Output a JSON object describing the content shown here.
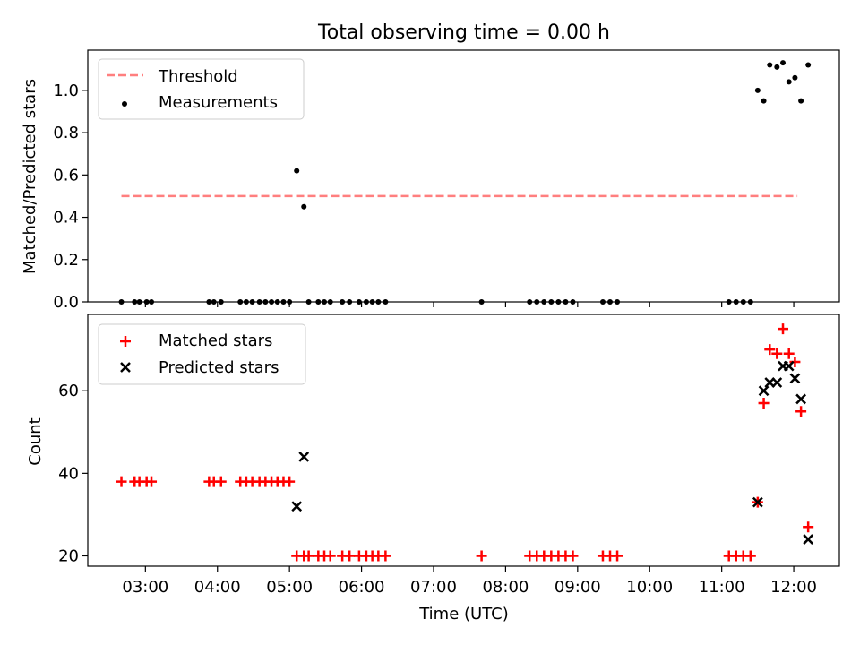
{
  "figure": {
    "title": "Total observing time = 0.00 h",
    "xlabel": "Time (UTC)"
  },
  "chart_data": [
    {
      "type": "scatter",
      "ylabel": "Matched/Predicted stars",
      "ylim": [
        0,
        1.19
      ],
      "yticks": [
        0.0,
        0.2,
        0.4,
        0.6,
        0.8,
        1.0
      ],
      "ytick_labels": [
        "0.0",
        "0.2",
        "0.4",
        "0.6",
        "0.8",
        "1.0"
      ],
      "legend_position": "top-left",
      "threshold": {
        "name": "Threshold",
        "value": 0.5,
        "x_start": "02:40",
        "x_end": "12:03",
        "color": "#ff7f7f"
      },
      "series": [
        {
          "name": "Measurements",
          "marker": "dot",
          "color": "#000000",
          "x": [
            "02:40",
            "02:51",
            "02:55",
            "03:01",
            "03:05",
            "03:53",
            "03:57",
            "04:03",
            "04:19",
            "04:24",
            "04:29",
            "04:35",
            "04:40",
            "04:45",
            "04:50",
            "04:55",
            "05:00",
            "05:06",
            "05:12",
            "05:16",
            "05:24",
            "05:29",
            "05:34",
            "05:44",
            "05:50",
            "05:58",
            "06:04",
            "06:09",
            "06:14",
            "06:20",
            "07:40",
            "08:20",
            "08:26",
            "08:32",
            "08:38",
            "08:44",
            "08:50",
            "08:56",
            "09:21",
            "09:27",
            "09:33",
            "11:06",
            "11:12",
            "11:18",
            "11:24",
            "11:30",
            "11:35",
            "11:40",
            "11:46",
            "11:51",
            "11:56",
            "12:01",
            "12:06",
            "12:12"
          ],
          "y": [
            0,
            0,
            0,
            0,
            0,
            0,
            0,
            0,
            0,
            0,
            0,
            0,
            0,
            0,
            0,
            0,
            0,
            0.62,
            0.45,
            0,
            0,
            0,
            0,
            0,
            0,
            0,
            0,
            0,
            0,
            0,
            0,
            0,
            0,
            0,
            0,
            0,
            0,
            0,
            0,
            0,
            0,
            0,
            0,
            0,
            0,
            1.0,
            0.95,
            1.12,
            1.11,
            1.13,
            1.04,
            1.06,
            0.95,
            1.12
          ]
        }
      ]
    },
    {
      "type": "scatter",
      "ylabel": "Count",
      "ylim": [
        17.5,
        78.5
      ],
      "yticks": [
        20,
        40,
        60
      ],
      "ytick_labels": [
        "20",
        "40",
        "60"
      ],
      "legend_position": "top-left",
      "series": [
        {
          "name": "Matched stars",
          "marker": "plus",
          "color": "#ff0000",
          "x": [
            "02:40",
            "02:51",
            "02:55",
            "03:01",
            "03:05",
            "03:53",
            "03:57",
            "04:03",
            "04:19",
            "04:24",
            "04:29",
            "04:35",
            "04:40",
            "04:45",
            "04:50",
            "04:55",
            "05:00",
            "05:06",
            "05:12",
            "05:16",
            "05:24",
            "05:29",
            "05:34",
            "05:44",
            "05:50",
            "05:58",
            "06:04",
            "06:09",
            "06:14",
            "06:20",
            "07:40",
            "08:20",
            "08:26",
            "08:32",
            "08:38",
            "08:44",
            "08:50",
            "08:56",
            "09:21",
            "09:27",
            "09:33",
            "11:06",
            "11:12",
            "11:18",
            "11:24",
            "11:30",
            "11:35",
            "11:40",
            "11:46",
            "11:51",
            "11:56",
            "12:01",
            "12:06",
            "12:12"
          ],
          "y": [
            38,
            38,
            38,
            38,
            38,
            38,
            38,
            38,
            38,
            38,
            38,
            38,
            38,
            38,
            38,
            38,
            38,
            20,
            20,
            20,
            20,
            20,
            20,
            20,
            20,
            20,
            20,
            20,
            20,
            20,
            20,
            20,
            20,
            20,
            20,
            20,
            20,
            20,
            20,
            20,
            20,
            20,
            20,
            20,
            20,
            33,
            57,
            70,
            69,
            75,
            69,
            67,
            55,
            27
          ]
        },
        {
          "name": "Predicted stars",
          "marker": "x",
          "color": "#000000",
          "x": [
            "05:06",
            "05:12",
            "11:30",
            "11:35",
            "11:40",
            "11:46",
            "11:51",
            "11:56",
            "12:01",
            "12:06",
            "12:12"
          ],
          "y": [
            32,
            44,
            33,
            60,
            62,
            62,
            66,
            66,
            63,
            58,
            24
          ]
        }
      ]
    }
  ],
  "x_axis": {
    "range": [
      "02:12",
      "12:38"
    ],
    "ticks": [
      "03:00",
      "04:00",
      "05:00",
      "06:00",
      "07:00",
      "08:00",
      "09:00",
      "10:00",
      "11:00",
      "12:00"
    ]
  }
}
